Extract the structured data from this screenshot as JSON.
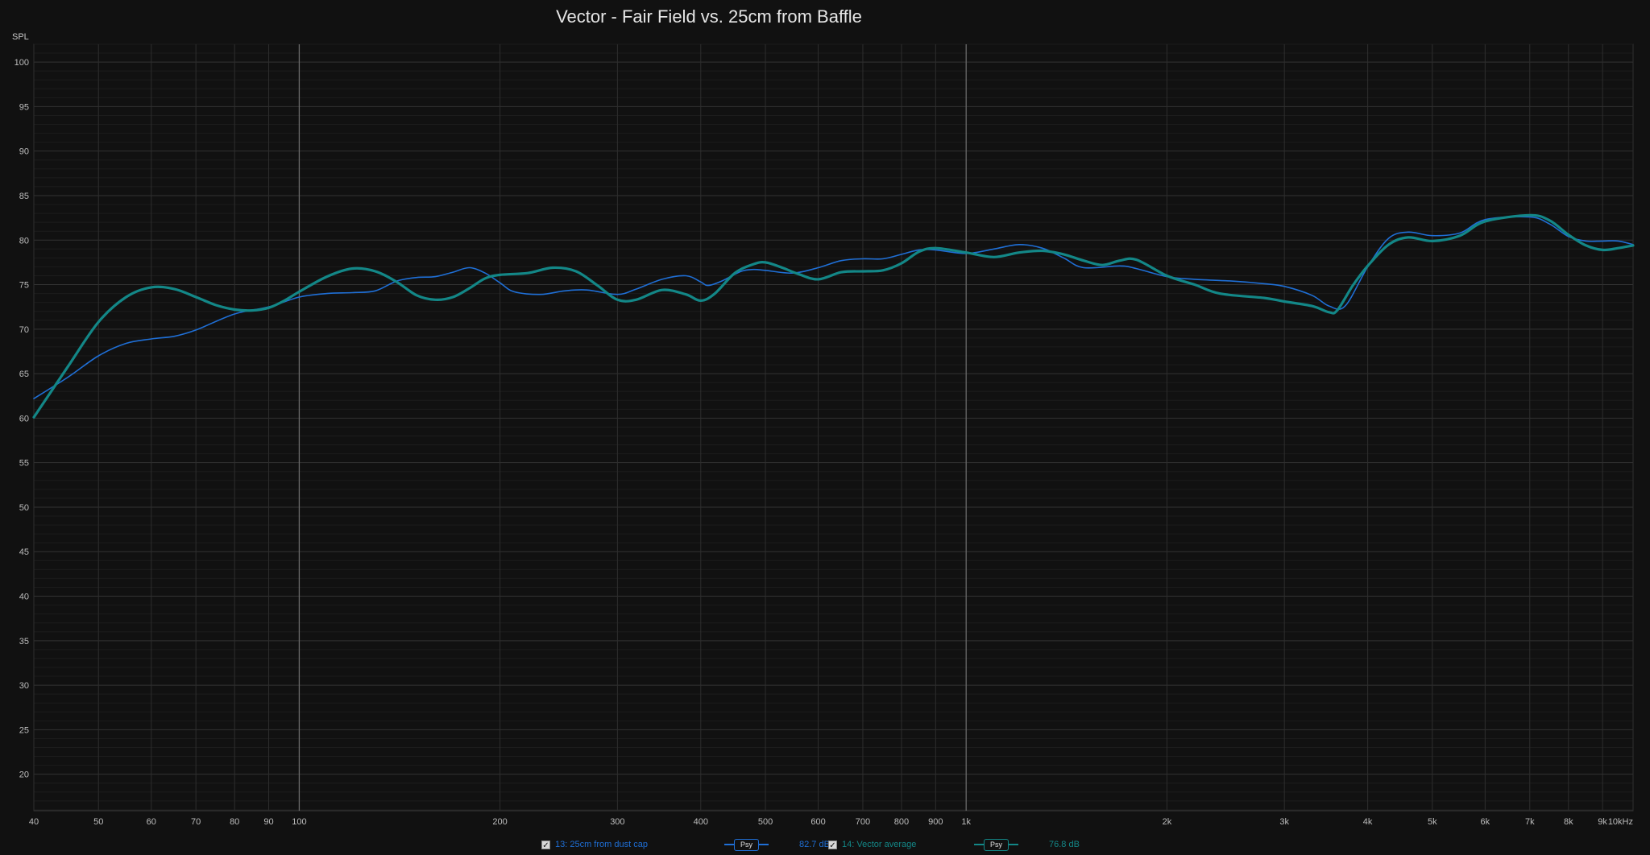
{
  "chart_data": {
    "type": "line",
    "title": "Vector - Fair Field vs. 25cm from Baffle",
    "ylabel": "SPL",
    "xlabel": "",
    "x_scale": "log",
    "xlim": [
      40,
      10000
    ],
    "ylim": [
      15.9,
      102
    ],
    "x_ticks": [
      {
        "v": 40,
        "label": "40"
      },
      {
        "v": 50,
        "label": "50"
      },
      {
        "v": 60,
        "label": "60"
      },
      {
        "v": 70,
        "label": "70"
      },
      {
        "v": 80,
        "label": "80"
      },
      {
        "v": 90,
        "label": "90"
      },
      {
        "v": 100,
        "label": "100"
      },
      {
        "v": 200,
        "label": "200"
      },
      {
        "v": 300,
        "label": "300"
      },
      {
        "v": 400,
        "label": "400"
      },
      {
        "v": 500,
        "label": "500"
      },
      {
        "v": 600,
        "label": "600"
      },
      {
        "v": 700,
        "label": "700"
      },
      {
        "v": 800,
        "label": "800"
      },
      {
        "v": 900,
        "label": "900"
      },
      {
        "v": 1000,
        "label": "1k"
      },
      {
        "v": 2000,
        "label": "2k"
      },
      {
        "v": 3000,
        "label": "3k"
      },
      {
        "v": 4000,
        "label": "4k"
      },
      {
        "v": 5000,
        "label": "5k"
      },
      {
        "v": 6000,
        "label": "6k"
      },
      {
        "v": 7000,
        "label": "7k"
      },
      {
        "v": 8000,
        "label": "8k"
      },
      {
        "v": 9000,
        "label": "9k"
      },
      {
        "v": 10000,
        "label": "10kHz"
      }
    ],
    "y_ticks": [
      100,
      95,
      90,
      85,
      80,
      75,
      70,
      65,
      60,
      55,
      50,
      45,
      40,
      35,
      30,
      25,
      20
    ],
    "grid": true,
    "series": [
      {
        "name": "13: 25cm from dust cap",
        "color": "#1f6fd6",
        "points": [
          [
            40,
            62.2
          ],
          [
            45,
            64.6
          ],
          [
            50,
            67.0
          ],
          [
            55,
            68.4
          ],
          [
            60,
            68.9
          ],
          [
            65,
            69.2
          ],
          [
            70,
            69.9
          ],
          [
            80,
            71.7
          ],
          [
            90,
            72.5
          ],
          [
            100,
            73.6
          ],
          [
            110,
            74.0
          ],
          [
            120,
            74.1
          ],
          [
            130,
            74.3
          ],
          [
            140,
            75.4
          ],
          [
            150,
            75.8
          ],
          [
            160,
            75.9
          ],
          [
            170,
            76.4
          ],
          [
            180,
            76.9
          ],
          [
            190,
            76.3
          ],
          [
            200,
            75.2
          ],
          [
            210,
            74.2
          ],
          [
            230,
            73.9
          ],
          [
            250,
            74.3
          ],
          [
            270,
            74.4
          ],
          [
            300,
            73.9
          ],
          [
            320,
            74.5
          ],
          [
            350,
            75.6
          ],
          [
            380,
            76.0
          ],
          [
            400,
            75.3
          ],
          [
            410,
            74.9
          ],
          [
            430,
            75.4
          ],
          [
            460,
            76.5
          ],
          [
            480,
            76.7
          ],
          [
            500,
            76.6
          ],
          [
            550,
            76.3
          ],
          [
            600,
            76.9
          ],
          [
            650,
            77.7
          ],
          [
            700,
            77.9
          ],
          [
            750,
            77.9
          ],
          [
            800,
            78.4
          ],
          [
            850,
            78.9
          ],
          [
            900,
            78.9
          ],
          [
            1000,
            78.5
          ],
          [
            1100,
            79.0
          ],
          [
            1200,
            79.5
          ],
          [
            1300,
            79.1
          ],
          [
            1400,
            78.0
          ],
          [
            1500,
            76.9
          ],
          [
            1700,
            77.1
          ],
          [
            1800,
            76.8
          ],
          [
            2000,
            75.9
          ],
          [
            2200,
            75.6
          ],
          [
            2500,
            75.4
          ],
          [
            2800,
            75.1
          ],
          [
            3000,
            74.8
          ],
          [
            3300,
            73.8
          ],
          [
            3500,
            72.6
          ],
          [
            3700,
            72.6
          ],
          [
            4000,
            77.0
          ],
          [
            4300,
            80.2
          ],
          [
            4600,
            80.9
          ],
          [
            5000,
            80.5
          ],
          [
            5500,
            80.8
          ],
          [
            6000,
            82.3
          ],
          [
            7000,
            82.6
          ],
          [
            7500,
            81.8
          ],
          [
            8000,
            80.4
          ],
          [
            8500,
            79.9
          ],
          [
            9000,
            79.9
          ],
          [
            9500,
            79.9
          ],
          [
            10000,
            79.5
          ]
        ]
      },
      {
        "name": "14: Vector average",
        "color": "#138787",
        "points": [
          [
            40,
            60.1
          ],
          [
            45,
            65.8
          ],
          [
            50,
            70.8
          ],
          [
            55,
            73.6
          ],
          [
            60,
            74.7
          ],
          [
            65,
            74.5
          ],
          [
            70,
            73.6
          ],
          [
            75,
            72.7
          ],
          [
            80,
            72.2
          ],
          [
            85,
            72.1
          ],
          [
            90,
            72.4
          ],
          [
            95,
            73.2
          ],
          [
            100,
            74.2
          ],
          [
            110,
            75.9
          ],
          [
            120,
            76.8
          ],
          [
            130,
            76.5
          ],
          [
            140,
            75.3
          ],
          [
            150,
            73.8
          ],
          [
            160,
            73.3
          ],
          [
            170,
            73.6
          ],
          [
            180,
            74.6
          ],
          [
            190,
            75.7
          ],
          [
            200,
            76.1
          ],
          [
            220,
            76.3
          ],
          [
            240,
            76.9
          ],
          [
            260,
            76.5
          ],
          [
            280,
            74.9
          ],
          [
            300,
            73.3
          ],
          [
            320,
            73.3
          ],
          [
            350,
            74.4
          ],
          [
            380,
            73.9
          ],
          [
            400,
            73.2
          ],
          [
            420,
            74.0
          ],
          [
            450,
            76.3
          ],
          [
            480,
            77.3
          ],
          [
            500,
            77.5
          ],
          [
            530,
            76.9
          ],
          [
            560,
            76.2
          ],
          [
            600,
            75.6
          ],
          [
            650,
            76.4
          ],
          [
            700,
            76.5
          ],
          [
            750,
            76.6
          ],
          [
            800,
            77.4
          ],
          [
            850,
            78.7
          ],
          [
            900,
            79.1
          ],
          [
            1000,
            78.6
          ],
          [
            1100,
            78.1
          ],
          [
            1200,
            78.6
          ],
          [
            1300,
            78.8
          ],
          [
            1400,
            78.4
          ],
          [
            1500,
            77.7
          ],
          [
            1600,
            77.2
          ],
          [
            1700,
            77.7
          ],
          [
            1800,
            77.8
          ],
          [
            2000,
            76.0
          ],
          [
            2200,
            75.0
          ],
          [
            2400,
            74.0
          ],
          [
            2800,
            73.5
          ],
          [
            3000,
            73.1
          ],
          [
            3300,
            72.6
          ],
          [
            3500,
            71.9
          ],
          [
            3600,
            72.1
          ],
          [
            3800,
            74.9
          ],
          [
            4000,
            77.1
          ],
          [
            4300,
            79.5
          ],
          [
            4600,
            80.3
          ],
          [
            5000,
            79.9
          ],
          [
            5500,
            80.5
          ],
          [
            6000,
            82.1
          ],
          [
            7000,
            82.8
          ],
          [
            7500,
            82.2
          ],
          [
            8000,
            80.6
          ],
          [
            8500,
            79.4
          ],
          [
            9000,
            78.9
          ],
          [
            9500,
            79.1
          ],
          [
            10000,
            79.4
          ]
        ]
      }
    ]
  },
  "legend": {
    "items": [
      {
        "checked": "✓",
        "label": "13: 25cm from dust cap",
        "psy": "Psy",
        "level": "82.7 dB",
        "color": "#1f6fd6"
      },
      {
        "checked": "✓",
        "label": "14: Vector average",
        "psy": "Psy",
        "level": "76.8 dB",
        "color": "#138787"
      }
    ]
  }
}
